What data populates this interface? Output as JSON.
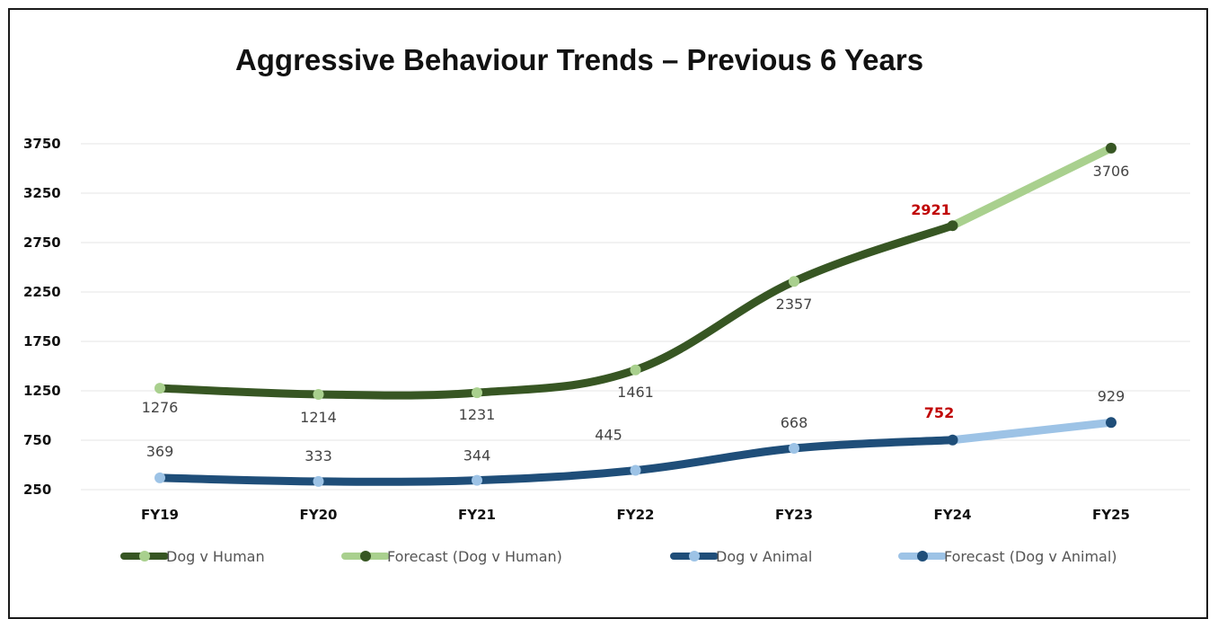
{
  "chart_data": {
    "type": "line",
    "title": "Aggressive Behaviour Trends – Previous 6 Years",
    "categories": [
      "FY19",
      "FY20",
      "FY21",
      "FY22",
      "FY23",
      "FY24",
      "FY25"
    ],
    "y_ticks": [
      "3750",
      "3250",
      "2750",
      "2250",
      "1750",
      "1250",
      "750",
      "250"
    ],
    "ylim": [
      250,
      3750
    ],
    "grid": true,
    "legend_position": "bottom",
    "series": [
      {
        "name": "Dog v Human",
        "values": [
          1276,
          1214,
          1231,
          1461,
          2357,
          2921,
          null
        ],
        "labels": [
          "1276",
          "1214",
          "1231",
          "1461",
          "2357",
          "2921",
          ""
        ],
        "line_color": "#375623",
        "marker_color": "#a9d08e"
      },
      {
        "name": "Forecast (Dog v Human)",
        "values": [
          null,
          null,
          null,
          null,
          null,
          2921,
          3706
        ],
        "labels": [
          "",
          "",
          "",
          "",
          "",
          "",
          "3706"
        ],
        "line_color": "#a9d08e",
        "marker_color": "#375623"
      },
      {
        "name": "Dog v Animal",
        "values": [
          369,
          333,
          344,
          445,
          668,
          752,
          null
        ],
        "labels": [
          "369",
          "333",
          "344",
          "445",
          "668",
          "752",
          ""
        ],
        "line_color": "#1f4e79",
        "marker_color": "#9dc3e6"
      },
      {
        "name": "Forecast (Dog v Animal)",
        "values": [
          null,
          null,
          null,
          null,
          null,
          752,
          929
        ],
        "labels": [
          "",
          "",
          "",
          "",
          "",
          "",
          "929"
        ],
        "line_color": "#9dc3e6",
        "marker_color": "#1f4e79"
      }
    ],
    "highlighted_labels": [
      "2921",
      "752"
    ],
    "highlight_color": "#c00000"
  }
}
